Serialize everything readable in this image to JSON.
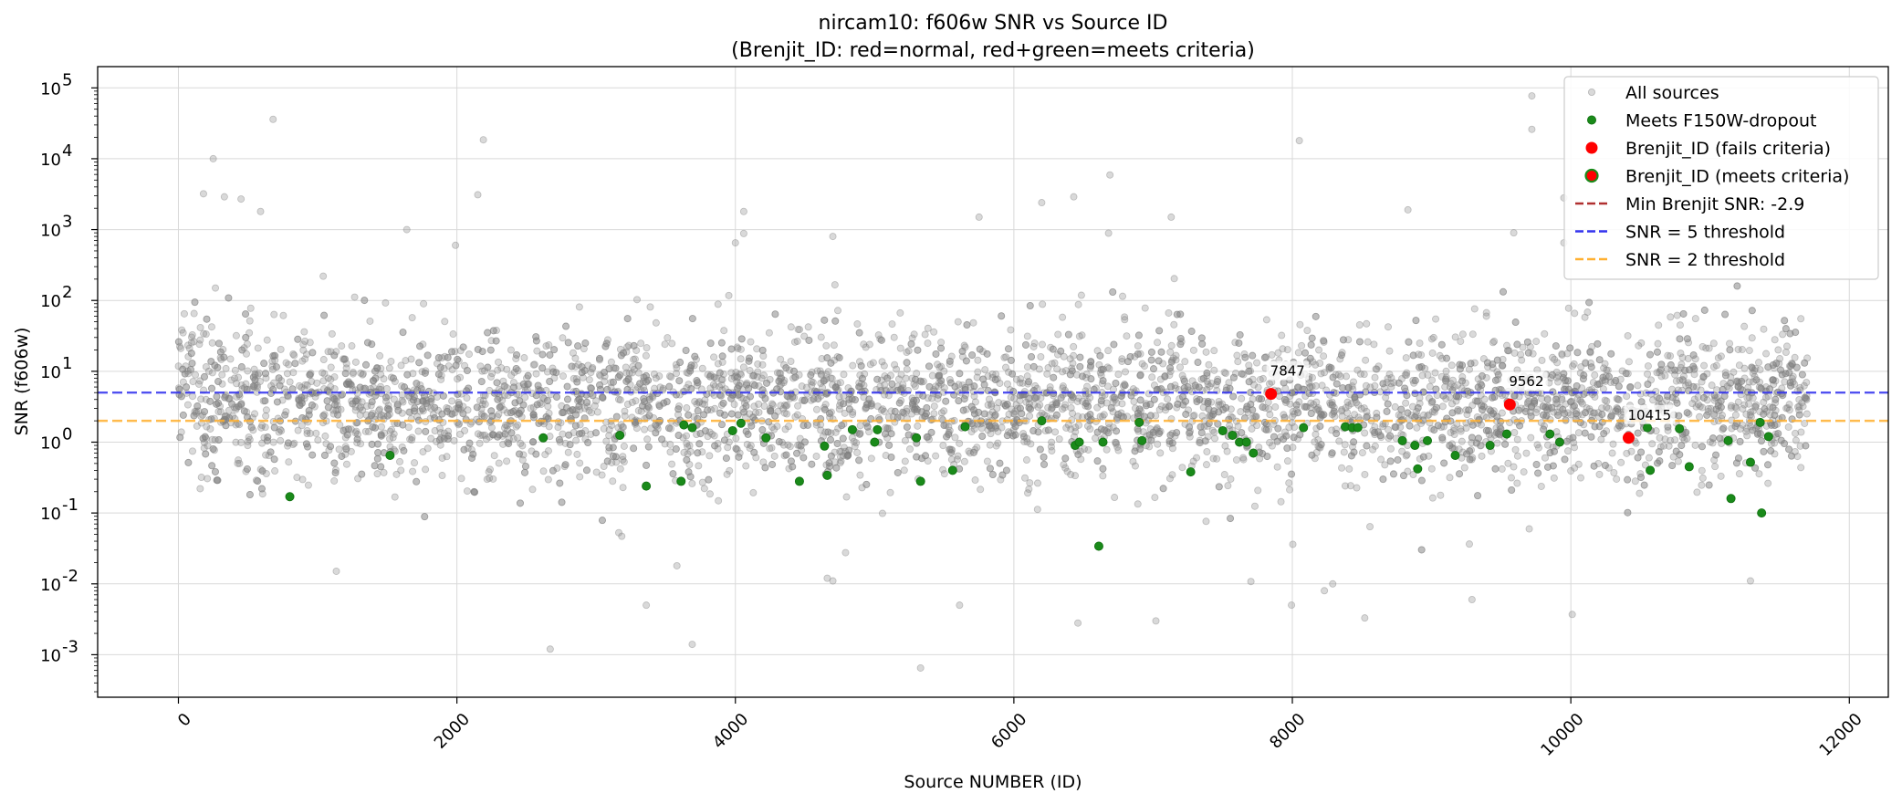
{
  "chart_data": {
    "type": "scatter",
    "title": "nircam10: f606w SNR vs Source ID",
    "subtitle": "(Brenjit_ID: red=normal, red+green=meets criteria)",
    "xlabel": "Source NUMBER (ID)",
    "ylabel": "SNR (f606w)",
    "xlim": [
      -580,
      12280
    ],
    "ylim_log10": [
      -3.6,
      5.3
    ],
    "x_ticks": [
      0,
      2000,
      4000,
      6000,
      8000,
      10000,
      12000
    ],
    "x_tick_labels": [
      "0",
      "2000",
      "4000",
      "6000",
      "8000",
      "10000",
      "12000"
    ],
    "y_ticks": [
      0.001,
      0.01,
      0.1,
      1,
      10,
      100,
      1000,
      10000,
      100000
    ],
    "y_tick_exponents": [
      "-3",
      "-2",
      "-1",
      "0",
      "1",
      "2",
      "3",
      "4",
      "5"
    ],
    "y_scale": "log",
    "grid": true,
    "legend_position": "top-right",
    "colors": {
      "all_sources": "#808080",
      "dropout": "#1a8a1a",
      "brenjit": "#ff0000",
      "min_snr_line": "#b03030",
      "snr5_line": "#3333ee",
      "snr2_line": "#ffb030"
    },
    "legend": [
      {
        "label": "All sources",
        "kind": "gray-dot"
      },
      {
        "label": "Meets F150W-dropout",
        "kind": "green-dot"
      },
      {
        "label": "Brenjit_ID (fails criteria)",
        "kind": "red-dot"
      },
      {
        "label": "Brenjit_ID (meets criteria)",
        "kind": "red-green-dot"
      },
      {
        "label": "Min Brenjit SNR: -2.9",
        "kind": "brown-dash"
      },
      {
        "label": "SNR = 5 threshold",
        "kind": "blue-dash"
      },
      {
        "label": "SNR = 2 threshold",
        "kind": "orange-dash"
      }
    ],
    "thresholds": [
      {
        "name": "SNR = 5 threshold",
        "y": 5
      },
      {
        "name": "SNR = 2 threshold",
        "y": 2
      }
    ],
    "all_sources_count": 5200,
    "all_sources_x_range": [
      0,
      11700
    ],
    "all_sources_outliers": [
      {
        "x": 180,
        "y": 3200
      },
      {
        "x": 250,
        "y": 10000
      },
      {
        "x": 330,
        "y": 2900
      },
      {
        "x": 450,
        "y": 2700
      },
      {
        "x": 590,
        "y": 1800
      },
      {
        "x": 680,
        "y": 36000
      },
      {
        "x": 1040,
        "y": 220
      },
      {
        "x": 1640,
        "y": 1000
      },
      {
        "x": 1990,
        "y": 600
      },
      {
        "x": 2150,
        "y": 3100
      },
      {
        "x": 2190,
        "y": 18500
      },
      {
        "x": 4000,
        "y": 650
      },
      {
        "x": 4060,
        "y": 1800
      },
      {
        "x": 4060,
        "y": 880
      },
      {
        "x": 4700,
        "y": 800
      },
      {
        "x": 5750,
        "y": 1500
      },
      {
        "x": 6200,
        "y": 2400
      },
      {
        "x": 6430,
        "y": 2900
      },
      {
        "x": 6690,
        "y": 5900
      },
      {
        "x": 6680,
        "y": 890
      },
      {
        "x": 7130,
        "y": 1500
      },
      {
        "x": 8050,
        "y": 18000
      },
      {
        "x": 8830,
        "y": 1900
      },
      {
        "x": 9720,
        "y": 77000
      },
      {
        "x": 9720,
        "y": 26000
      },
      {
        "x": 9590,
        "y": 900
      },
      {
        "x": 9950,
        "y": 2800
      },
      {
        "x": 9950,
        "y": 650
      },
      {
        "x": 2670,
        "y": 0.0012
      },
      {
        "x": 3360,
        "y": 0.005
      },
      {
        "x": 3690,
        "y": 0.0014
      },
      {
        "x": 5330,
        "y": 0.00065
      },
      {
        "x": 5610,
        "y": 0.005
      },
      {
        "x": 6460,
        "y": 0.0028
      },
      {
        "x": 7020,
        "y": 0.003
      },
      {
        "x": 8520,
        "y": 0.0033
      },
      {
        "x": 9290,
        "y": 0.006
      },
      {
        "x": 10010,
        "y": 0.0037
      },
      {
        "x": 11290,
        "y": 0.011
      },
      {
        "x": 3580,
        "y": 0.018
      },
      {
        "x": 4660,
        "y": 0.012
      },
      {
        "x": 4700,
        "y": 0.011
      },
      {
        "x": 8230,
        "y": 0.008
      },
      {
        "x": 8290,
        "y": 0.01
      }
    ],
    "dropout_points": [
      {
        "x": 800,
        "y": 0.17
      },
      {
        "x": 1520,
        "y": 0.65
      },
      {
        "x": 2620,
        "y": 1.15
      },
      {
        "x": 3170,
        "y": 1.25
      },
      {
        "x": 3360,
        "y": 0.24
      },
      {
        "x": 3610,
        "y": 0.28
      },
      {
        "x": 3630,
        "y": 1.75
      },
      {
        "x": 3690,
        "y": 1.6
      },
      {
        "x": 3980,
        "y": 1.45
      },
      {
        "x": 4040,
        "y": 1.85
      },
      {
        "x": 4220,
        "y": 1.15
      },
      {
        "x": 4460,
        "y": 0.28
      },
      {
        "x": 4640,
        "y": 0.88
      },
      {
        "x": 4660,
        "y": 0.34
      },
      {
        "x": 4840,
        "y": 1.5
      },
      {
        "x": 5000,
        "y": 1.0
      },
      {
        "x": 5020,
        "y": 1.5
      },
      {
        "x": 5300,
        "y": 1.15
      },
      {
        "x": 5330,
        "y": 0.28
      },
      {
        "x": 5560,
        "y": 0.4
      },
      {
        "x": 5650,
        "y": 1.65
      },
      {
        "x": 6200,
        "y": 2.0
      },
      {
        "x": 6440,
        "y": 0.9
      },
      {
        "x": 6470,
        "y": 1.0
      },
      {
        "x": 6610,
        "y": 0.034
      },
      {
        "x": 6640,
        "y": 1.0
      },
      {
        "x": 6900,
        "y": 1.9
      },
      {
        "x": 6920,
        "y": 1.05
      },
      {
        "x": 7270,
        "y": 0.38
      },
      {
        "x": 7500,
        "y": 1.45
      },
      {
        "x": 7570,
        "y": 1.25
      },
      {
        "x": 7620,
        "y": 1.0
      },
      {
        "x": 7670,
        "y": 1.0
      },
      {
        "x": 7720,
        "y": 0.7
      },
      {
        "x": 8080,
        "y": 1.6
      },
      {
        "x": 8380,
        "y": 1.65
      },
      {
        "x": 8430,
        "y": 1.6
      },
      {
        "x": 8470,
        "y": 1.6
      },
      {
        "x": 8790,
        "y": 1.05
      },
      {
        "x": 8880,
        "y": 0.9
      },
      {
        "x": 8900,
        "y": 0.42
      },
      {
        "x": 8970,
        "y": 1.05
      },
      {
        "x": 9170,
        "y": 0.65
      },
      {
        "x": 9420,
        "y": 0.9
      },
      {
        "x": 9540,
        "y": 1.3
      },
      {
        "x": 9850,
        "y": 1.3
      },
      {
        "x": 9920,
        "y": 1.0
      },
      {
        "x": 10550,
        "y": 1.6
      },
      {
        "x": 10570,
        "y": 0.4
      },
      {
        "x": 10780,
        "y": 1.55
      },
      {
        "x": 10850,
        "y": 0.45
      },
      {
        "x": 11130,
        "y": 1.05
      },
      {
        "x": 11150,
        "y": 0.16
      },
      {
        "x": 11290,
        "y": 0.52
      },
      {
        "x": 11360,
        "y": 1.9
      },
      {
        "x": 11420,
        "y": 1.2
      },
      {
        "x": 11370,
        "y": 0.1
      }
    ],
    "brenjit_points": [
      {
        "x": 7847,
        "y": 4.8,
        "label": "7847",
        "meets_criteria": false
      },
      {
        "x": 9562,
        "y": 3.4,
        "label": "9562",
        "meets_criteria": false
      },
      {
        "x": 10415,
        "y": 1.15,
        "label": "10415",
        "meets_criteria": false
      }
    ]
  }
}
